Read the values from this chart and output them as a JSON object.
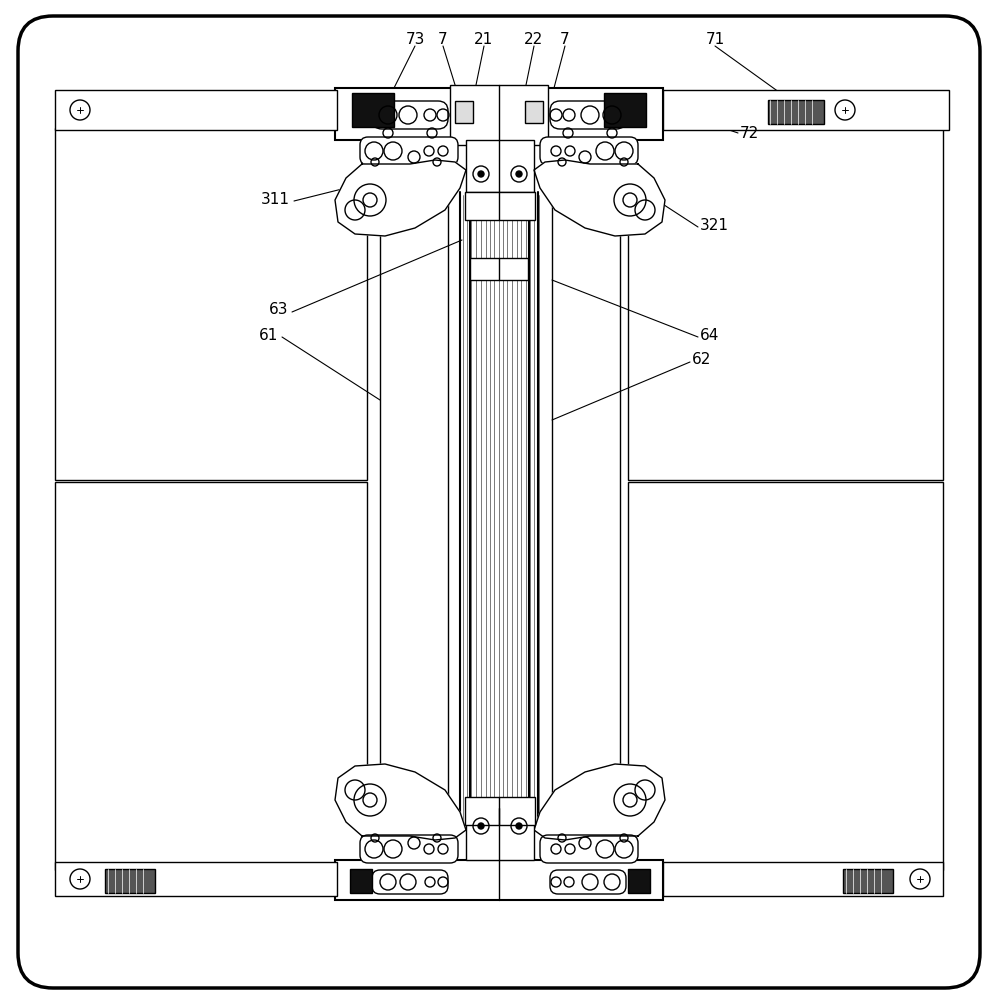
{
  "background_color": "#ffffff",
  "line_color": "#000000",
  "fig_width": 9.98,
  "fig_height": 10.0
}
